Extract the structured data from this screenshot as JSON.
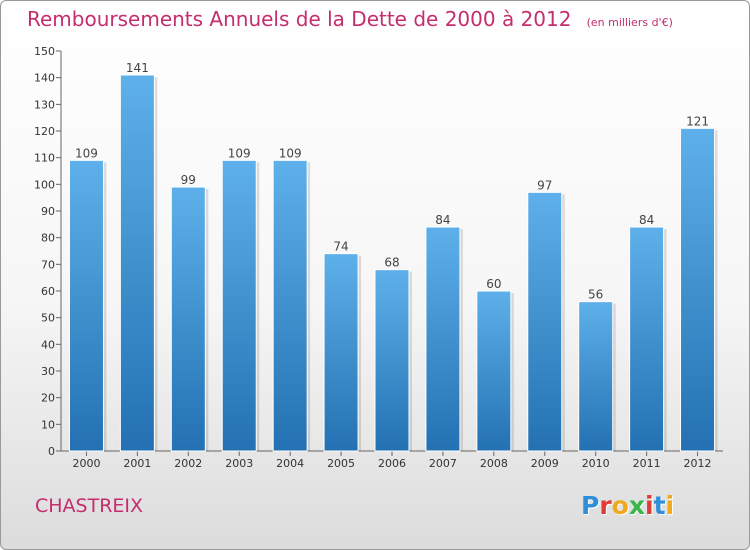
{
  "header": {
    "title": "Remboursements Annuels de la Dette de 2000 à 2012",
    "unit": "(en milliers d'€)"
  },
  "footer": {
    "commune": "CHASTREIX",
    "logo_text": "Proxiti"
  },
  "colors": {
    "title": "#c42d6e",
    "bar_top": "#5eb0ea",
    "bar_bottom": "#2371b2",
    "logo_letters": [
      "#2f8fd8",
      "#e03a3a",
      "#f0a81e",
      "#39b54a",
      "#e03a3a",
      "#2f8fd8",
      "#f0a81e"
    ]
  },
  "chart_data": {
    "type": "bar",
    "categories": [
      "2000",
      "2001",
      "2002",
      "2003",
      "2004",
      "2005",
      "2006",
      "2007",
      "2008",
      "2009",
      "2010",
      "2011",
      "2012"
    ],
    "values": [
      109,
      141,
      99,
      109,
      109,
      74,
      68,
      84,
      60,
      97,
      56,
      84,
      121
    ],
    "ylim": [
      0,
      150
    ],
    "yticks": [
      0,
      10,
      20,
      30,
      40,
      50,
      60,
      70,
      80,
      90,
      100,
      110,
      120,
      130,
      140,
      150
    ],
    "grid": false,
    "legend": "none"
  }
}
